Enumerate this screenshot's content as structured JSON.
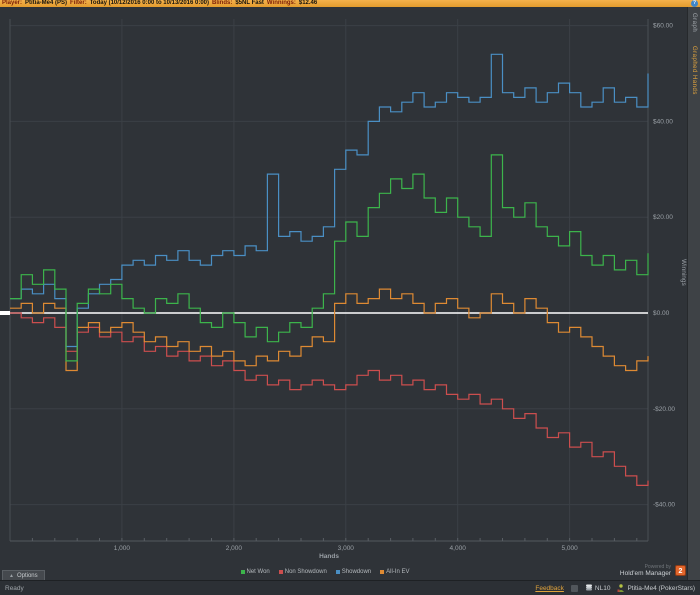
{
  "topbar": {
    "player_label": "Player:",
    "player": "Ptitia-Me4 (PS)",
    "filter_label": "Filter:",
    "filter": "Today (10/12/2016 0:00 to 10/13/2016 0:00)",
    "blinds_label": "Blinds:",
    "blinds": "$5NL Fast",
    "winnings_label": "Winnings:",
    "winnings": "$12.46",
    "help_icon": "?"
  },
  "sidebar": {
    "tabs": [
      {
        "label": "Graph",
        "active": false
      },
      {
        "label": "Graphed Hands",
        "active": true
      }
    ]
  },
  "chart_data": {
    "type": "line",
    "style": "step-after",
    "xlabel": "Hands",
    "ylabel": "Winnings",
    "xlim": [
      0,
      5700
    ],
    "ylim": [
      -47,
      62
    ],
    "x_step": 100,
    "grid": true,
    "zero_line_color": "#ffffff",
    "x_ticks": [
      1000,
      2000,
      3000,
      4000,
      5000
    ],
    "x_tick_labels": [
      "1,000",
      "2,000",
      "3,000",
      "4,000",
      "5,000"
    ],
    "y_ticks": [
      60,
      40,
      20,
      0,
      -20,
      -40
    ],
    "y_tick_labels": [
      "$60.00",
      "$40.00",
      "$20.00",
      "$0.00",
      "-$20.00",
      "-$40.00"
    ],
    "legend_position": "bottom-center",
    "series": [
      {
        "name": "Net Won",
        "color": "#3cb44b",
        "values": [
          3,
          8,
          6,
          9,
          5,
          -10,
          2,
          5,
          4,
          6,
          3,
          1,
          0,
          3,
          2,
          4,
          1,
          -2,
          -3,
          0,
          -2,
          -5,
          -3,
          -6,
          -4,
          -2,
          -3,
          1,
          4,
          15,
          19,
          16,
          22,
          25,
          28,
          26,
          29,
          24,
          21,
          24,
          20,
          18,
          16,
          33,
          22,
          20,
          23,
          18,
          16,
          14,
          17,
          12,
          10,
          12,
          9,
          11,
          8,
          12.46
        ]
      },
      {
        "name": "Non Showdown",
        "color": "#cc4e4e",
        "values": [
          0,
          -1,
          -2,
          -1,
          -3,
          -8,
          -4,
          -3,
          -5,
          -4,
          -6,
          -5,
          -8,
          -7,
          -9,
          -8,
          -10,
          -9,
          -11,
          -10,
          -12,
          -14,
          -13,
          -15,
          -14,
          -16,
          -15,
          -14,
          -15,
          -16,
          -15,
          -13,
          -12,
          -14,
          -13,
          -15,
          -14,
          -16,
          -15,
          -17,
          -18,
          -17,
          -19,
          -18,
          -20,
          -22,
          -21,
          -24,
          -26,
          -25,
          -28,
          -27,
          -30,
          -29,
          -32,
          -34,
          -36,
          -35
        ]
      },
      {
        "name": "Showdown",
        "color": "#4a8fc4",
        "values": [
          3,
          5,
          4,
          6,
          3,
          -7,
          1,
          4,
          6,
          7,
          10,
          11,
          10,
          12,
          11,
          13,
          11,
          10,
          12,
          13,
          12,
          14,
          13,
          29,
          16,
          17,
          15,
          16,
          18,
          30,
          34,
          33,
          40,
          43,
          42,
          44,
          46,
          43,
          44,
          46,
          45,
          44,
          45,
          54,
          46,
          45,
          47,
          44,
          46,
          48,
          46,
          43,
          44,
          47,
          44,
          45,
          43,
          50
        ]
      },
      {
        "name": "All-In EV",
        "color": "#de8a33",
        "values": [
          1,
          2,
          0,
          2,
          1,
          -12,
          -3,
          -2,
          -4,
          -3,
          -2,
          -4,
          -6,
          -5,
          -7,
          -6,
          -8,
          -7,
          -9,
          -8,
          -10,
          -11,
          -9,
          -10,
          -8,
          -9,
          -7,
          -5,
          -6,
          2,
          4,
          2,
          3,
          5,
          3,
          4,
          2,
          0,
          2,
          3,
          1,
          -1,
          0,
          4,
          2,
          0,
          3,
          1,
          -2,
          -4,
          -3,
          -5,
          -7,
          -9,
          -11,
          -12,
          -10,
          -9
        ]
      }
    ]
  },
  "footer": {
    "options_label": "Options",
    "powered_by": "Powered by",
    "brand": "Hold'em Manager",
    "brand_logo": "2"
  },
  "statusbar": {
    "ready": "Ready",
    "feedback": "Feedback",
    "stakes": "NL10",
    "player": "Ptitia-Me4 (PokerStars)"
  }
}
